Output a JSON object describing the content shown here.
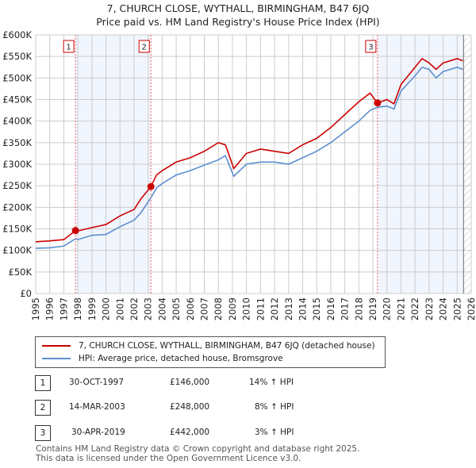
{
  "title": "7, CHURCH CLOSE, WYTHALL, BIRMINGHAM, B47 6JQ",
  "subtitle": "Price paid vs. HM Land Registry's House Price Index (HPI)",
  "chart_data": {
    "type": "line",
    "ylim": [
      0,
      600000
    ],
    "xlim": [
      1995,
      2026
    ],
    "yticks": [
      {
        "v": 0,
        "l": "£0"
      },
      {
        "v": 50000,
        "l": "£50K"
      },
      {
        "v": 100000,
        "l": "£100K"
      },
      {
        "v": 150000,
        "l": "£150K"
      },
      {
        "v": 200000,
        "l": "£200K"
      },
      {
        "v": 250000,
        "l": "£250K"
      },
      {
        "v": 300000,
        "l": "£300K"
      },
      {
        "v": 350000,
        "l": "£350K"
      },
      {
        "v": 400000,
        "l": "£400K"
      },
      {
        "v": 450000,
        "l": "£450K"
      },
      {
        "v": 500000,
        "l": "£500K"
      },
      {
        "v": 550000,
        "l": "£550K"
      },
      {
        "v": 600000,
        "l": "£600K"
      }
    ],
    "xticks": [
      "1995",
      "1996",
      "1997",
      "1998",
      "1999",
      "2000",
      "2001",
      "2002",
      "2003",
      "2004",
      "2005",
      "2006",
      "2007",
      "2008",
      "2009",
      "2010",
      "2011",
      "2012",
      "2013",
      "2014",
      "2015",
      "2016",
      "2017",
      "2018",
      "2019",
      "2020",
      "2021",
      "2022",
      "2023",
      "2024",
      "2025",
      "2026"
    ],
    "series": [
      {
        "name": "7, CHURCH CLOSE, WYTHALL, BIRMINGHAM, B47 6JQ (detached house)",
        "color": "#cc0000",
        "x": [
          1995,
          1996,
          1997,
          1997.83,
          1998,
          1999,
          2000,
          2001,
          2002,
          2002.5,
          2003.2,
          2003.6,
          2004,
          2005,
          2006,
          2007,
          2008,
          2008.5,
          2009.1,
          2010,
          2011,
          2012,
          2013,
          2014,
          2015,
          2016,
          2017,
          2018,
          2018.8,
          2019.33,
          2020,
          2020.5,
          2021,
          2022,
          2022.5,
          2023,
          2023.5,
          2024,
          2025,
          2025.4
        ],
        "y": [
          120,
          122,
          125,
          146,
          145,
          153,
          160,
          180,
          195,
          220,
          248,
          275,
          285,
          305,
          315,
          330,
          350,
          345,
          290,
          325,
          335,
          330,
          325,
          345,
          360,
          385,
          415,
          445,
          465,
          442,
          450,
          440,
          485,
          525,
          545,
          535,
          520,
          535,
          545,
          540
        ]
      },
      {
        "name": "HPI: Average price, detached house, Bromsgrove",
        "color": "#5b8fd0",
        "x": [
          1995,
          1996,
          1997,
          1997.83,
          1998,
          1999,
          2000,
          2001,
          2002,
          2002.5,
          2003.2,
          2003.6,
          2004,
          2005,
          2006,
          2007,
          2008,
          2008.5,
          2009.1,
          2010,
          2011,
          2012,
          2013,
          2014,
          2015,
          2016,
          2017,
          2018,
          2018.8,
          2019.33,
          2020,
          2020.5,
          2021,
          2022,
          2022.5,
          2023,
          2023.5,
          2024,
          2025,
          2025.4
        ],
        "y": [
          105,
          106,
          110,
          127,
          125,
          135,
          137,
          155,
          170,
          188,
          222,
          245,
          255,
          275,
          285,
          298,
          310,
          320,
          272,
          300,
          305,
          305,
          300,
          315,
          330,
          350,
          375,
          400,
          425,
          432,
          435,
          428,
          470,
          505,
          525,
          520,
          500,
          515,
          525,
          520
        ]
      }
    ],
    "sales": [
      {
        "n": "1",
        "x": 1997.83,
        "y": 146
      },
      {
        "n": "2",
        "x": 2003.2,
        "y": 248
      },
      {
        "n": "3",
        "x": 2019.33,
        "y": 442
      }
    ],
    "shaded": [
      [
        1997.83,
        2003.2
      ],
      [
        2019.33,
        2025.4
      ]
    ],
    "hatched_from": 2025.45
  },
  "legend": {
    "item1": "7, CHURCH CLOSE, WYTHALL, BIRMINGHAM, B47 6JQ (detached house)",
    "item2": "HPI: Average price, detached house, Bromsgrove"
  },
  "transactions": [
    {
      "n": "1",
      "date": "30-OCT-1997",
      "price": "£146,000",
      "hpi": "14% ↑ HPI"
    },
    {
      "n": "2",
      "date": "14-MAR-2003",
      "price": "£248,000",
      "hpi": "8% ↑ HPI"
    },
    {
      "n": "3",
      "date": "30-APR-2019",
      "price": "£442,000",
      "hpi": "3% ↑ HPI"
    }
  ],
  "footer": {
    "line1": "Contains HM Land Registry data © Crown copyright and database right 2025.",
    "line2": "This data is licensed under the Open Government Licence v3.0."
  }
}
